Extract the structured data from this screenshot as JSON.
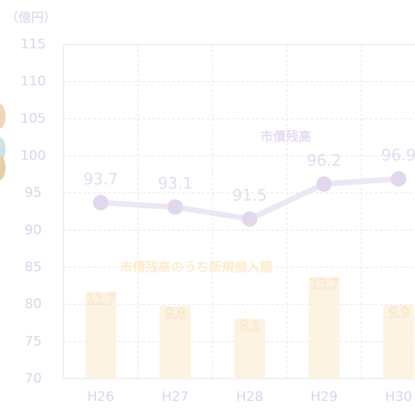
{
  "chart_data": {
    "type": "bar-line",
    "y_unit_label": "（億円）",
    "categories": [
      "H26",
      "H27",
      "H28",
      "H29",
      "H30"
    ],
    "series": [
      {
        "name": "市債残高",
        "type": "line",
        "color": "#ece7f4",
        "marker_color": "#e3d7ec",
        "values": [
          93.7,
          93.1,
          91.5,
          96.2,
          96.9
        ]
      },
      {
        "name": "市債残高のうち新規借入額",
        "type": "bar",
        "axis": "y2",
        "color": "#fdf3e2",
        "values": [
          11.7,
          9.8,
          8.1,
          13.7,
          9.9
        ]
      }
    ],
    "ylim": [
      70,
      115
    ],
    "yticks": [
      70,
      75,
      80,
      85,
      90,
      95,
      100,
      105,
      110,
      115
    ],
    "y2lim": [
      0,
      45
    ],
    "grid": true
  }
}
